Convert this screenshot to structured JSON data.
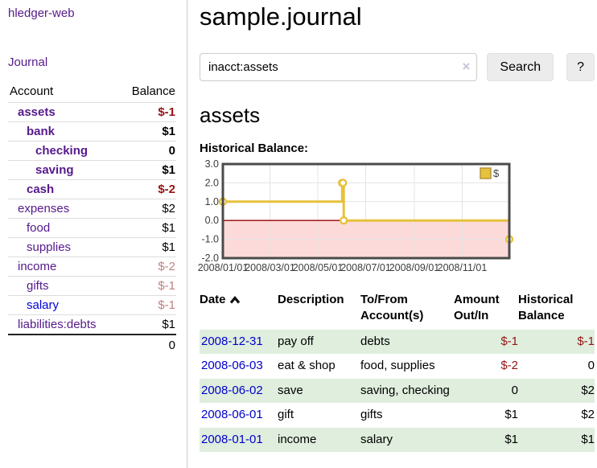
{
  "colors": {
    "link_visited": "#551a8b",
    "link_unvisited": "#0000e0",
    "negative_strong": "#941414",
    "negative_soft": "#c08181",
    "row_green": "#dfeedd",
    "chart_line": "#e6c13c",
    "chart_negative_fill": "#fcdada",
    "chart_zero_line": "#990000",
    "chart_border": "#4b4b4b",
    "chart_grid": "#e4e4e4"
  },
  "sidebar": {
    "brand": "hledger-web",
    "journal_link": "Journal",
    "accounts": {
      "col_account": "Account",
      "col_balance": "Balance",
      "rows": [
        {
          "name": "assets",
          "balance": "$-1",
          "indent": 1,
          "bold": true,
          "balance_style": "neg-strong"
        },
        {
          "name": "bank",
          "balance": "$1",
          "indent": 2,
          "bold": true,
          "balance_style": "pos"
        },
        {
          "name": "checking",
          "balance": "0",
          "indent": 3,
          "bold": true,
          "balance_style": "pos"
        },
        {
          "name": "saving",
          "balance": "$1",
          "indent": 3,
          "bold": true,
          "balance_style": "pos"
        },
        {
          "name": "cash",
          "balance": "$-2",
          "indent": 2,
          "bold": true,
          "balance_style": "neg-strong"
        },
        {
          "name": "expenses",
          "balance": "$2",
          "indent": 1,
          "bold": false,
          "balance_style": "pos"
        },
        {
          "name": "food",
          "balance": "$1",
          "indent": 2,
          "bold": false,
          "balance_style": "pos"
        },
        {
          "name": "supplies",
          "balance": "$1",
          "indent": 2,
          "bold": false,
          "balance_style": "pos"
        },
        {
          "name": "income",
          "balance": "$-2",
          "indent": 1,
          "bold": false,
          "balance_style": "neg-soft"
        },
        {
          "name": "gifts",
          "balance": "$-1",
          "indent": 2,
          "bold": false,
          "balance_style": "neg-soft"
        },
        {
          "name": "salary",
          "balance": "$-1",
          "indent": 2,
          "bold": false,
          "balance_style": "neg-soft",
          "link_style": "unvisited"
        },
        {
          "name": "liabilities:debts",
          "balance": "$1",
          "indent": 1,
          "bold": false,
          "balance_style": "pos"
        }
      ],
      "total": "0"
    }
  },
  "main": {
    "title": "sample.journal",
    "search": {
      "value": "inacct:assets",
      "clear_icon": "×",
      "search_button": "Search",
      "help_button": "?"
    },
    "account_heading": "assets",
    "chart_title": "Historical Balance:"
  },
  "chart_data": {
    "type": "line",
    "style": "step-after",
    "title": "Historical Balance",
    "legend": "$",
    "legend_position": "top-right",
    "grid": true,
    "negative_region_shaded": true,
    "ylim": [
      -2,
      3
    ],
    "y_ticks": [
      "3.0",
      "2.0",
      "1.0",
      "0.0",
      "-1.0",
      "-2.0"
    ],
    "y_tick_values": [
      3,
      2,
      1,
      0,
      -1,
      -2
    ],
    "x_domain": [
      "2008-01-01",
      "2008-12-31"
    ],
    "x_ticks": [
      "2008/01/01",
      "2008/03/01",
      "2008/05/01",
      "2008/07/01",
      "2008/09/01",
      "2008/11/01"
    ],
    "series": [
      {
        "name": "$",
        "points": [
          [
            "2008-01-01",
            1
          ],
          [
            "2008-06-01",
            2
          ],
          [
            "2008-06-02",
            2
          ],
          [
            "2008-06-03",
            0
          ],
          [
            "2008-12-31",
            -1
          ]
        ]
      }
    ]
  },
  "register": {
    "headers": {
      "date": "Date",
      "description": "Description",
      "accounts": "To/From Account(s)",
      "amount": "Amount Out/In",
      "balance": "Historical Balance"
    },
    "sort": "ascending",
    "rows": [
      {
        "date": "2008-12-31",
        "description": "pay off",
        "accounts": "debts",
        "amount": "$-1",
        "amount_style": "neg",
        "balance": "$-1",
        "balance_style": "neg"
      },
      {
        "date": "2008-06-03",
        "description": "eat & shop",
        "accounts": "food, supplies",
        "amount": "$-2",
        "amount_style": "neg",
        "balance": "0",
        "balance_style": "pos"
      },
      {
        "date": "2008-06-02",
        "description": "save",
        "accounts": "saving, checking",
        "amount": "0",
        "amount_style": "pos",
        "balance": "$2",
        "balance_style": "pos"
      },
      {
        "date": "2008-06-01",
        "description": "gift",
        "accounts": "gifts",
        "amount": "$1",
        "amount_style": "pos",
        "balance": "$2",
        "balance_style": "pos"
      },
      {
        "date": "2008-01-01",
        "description": "income",
        "accounts": "salary",
        "amount": "$1",
        "amount_style": "pos",
        "balance": "$1",
        "balance_style": "pos"
      }
    ]
  }
}
